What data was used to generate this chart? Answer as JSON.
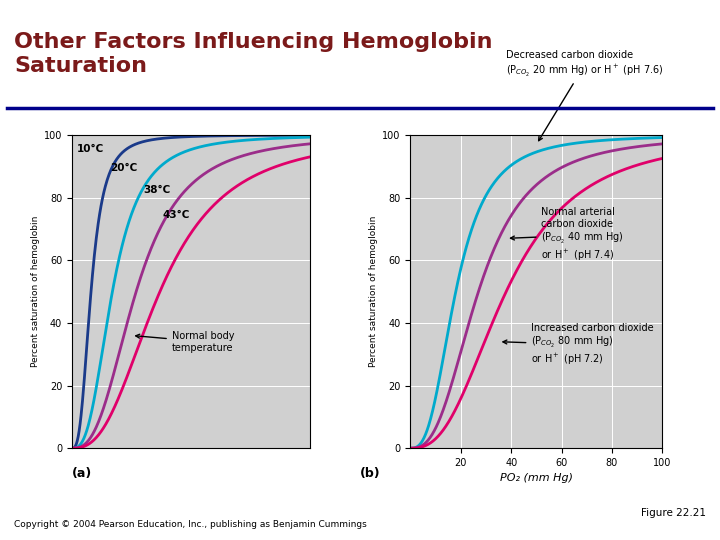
{
  "title": "Other Factors Influencing Hemoglobin\nSaturation",
  "title_color": "#7B1A1A",
  "title_fontsize": 16,
  "header_line_color": "#00008B",
  "background_color": "#FFFFFF",
  "plot_bg_color": "#D0D0D0",
  "figure_label_a": "(a)",
  "figure_label_b": "(b)",
  "copyright": "Copyright © 2004 Pearson Education, Inc., publishing as Benjamin Cummings",
  "figure_num": "Figure 22.21",
  "ylabel": "Percent saturation of hemoglobin",
  "xlabel_b": "PO₂ (mm Hg)",
  "x_ticks_b": [
    20,
    40,
    60,
    80,
    100
  ],
  "y_ticks": [
    0,
    20,
    40,
    60,
    80,
    100
  ],
  "curve_a_colors": [
    "#1A3A8A",
    "#00AACC",
    "#9B2D8A",
    "#E0006A"
  ],
  "curve_a_labels": [
    "10°C",
    "20°C",
    "38°C",
    "43°C"
  ],
  "curve_a_p50": [
    8,
    17,
    27,
    37
  ],
  "curve_a_n": [
    2.9,
    2.8,
    2.7,
    2.6
  ],
  "curve_b_colors": [
    "#00AACC",
    "#9B2D8A",
    "#E0006A"
  ],
  "curve_b_p50": [
    18,
    27,
    38
  ],
  "curve_b_n": [
    2.8,
    2.7,
    2.6
  ]
}
